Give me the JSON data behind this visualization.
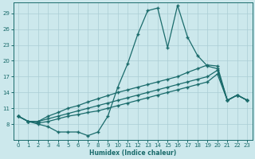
{
  "xlabel": "Humidex (Indice chaleur)",
  "bg_color": "#cce8ec",
  "grid_color": "#aacdd4",
  "line_color": "#1a6b6b",
  "ylim": [
    5,
    31
  ],
  "xlim": [
    -0.5,
    23.5
  ],
  "yticks": [
    8,
    11,
    14,
    17,
    20,
    23,
    26,
    29
  ],
  "xticks": [
    0,
    1,
    2,
    3,
    4,
    5,
    6,
    7,
    8,
    9,
    10,
    11,
    12,
    13,
    14,
    15,
    16,
    17,
    18,
    19,
    20,
    21,
    22,
    23
  ],
  "curve_main": {
    "x": [
      0,
      1,
      2,
      3,
      4,
      5,
      6,
      7,
      8,
      9,
      10,
      11,
      12,
      13,
      14,
      15,
      16,
      17,
      18,
      19,
      20,
      21,
      22,
      23
    ],
    "y": [
      9.5,
      8.5,
      8.0,
      7.5,
      6.5,
      6.5,
      6.5,
      5.8,
      6.5,
      9.5,
      15.0,
      19.5,
      25.0,
      29.5,
      30.0,
      22.5,
      30.5,
      24.5,
      21.0,
      19.0,
      18.5,
      12.5,
      13.5,
      12.5
    ]
  },
  "curve_line1": {
    "x": [
      0,
      1,
      2,
      3,
      4,
      5,
      6,
      7,
      8,
      9,
      10,
      11,
      12,
      13,
      14,
      15,
      16,
      17,
      18,
      19,
      20,
      21,
      22,
      23
    ],
    "y": [
      9.5,
      8.5,
      8.2,
      8.5,
      9.0,
      9.5,
      9.8,
      10.2,
      10.5,
      11.0,
      11.5,
      12.0,
      12.5,
      13.0,
      13.5,
      14.0,
      14.5,
      15.0,
      15.5,
      16.0,
      17.5,
      12.5,
      13.5,
      12.5
    ]
  },
  "curve_line2": {
    "x": [
      0,
      1,
      2,
      3,
      4,
      5,
      6,
      7,
      8,
      9,
      10,
      11,
      12,
      13,
      14,
      15,
      16,
      17,
      18,
      19,
      20,
      21,
      22,
      23
    ],
    "y": [
      9.5,
      8.5,
      8.5,
      9.0,
      9.5,
      10.0,
      10.5,
      11.0,
      11.5,
      12.0,
      12.5,
      13.0,
      13.5,
      14.0,
      14.5,
      15.0,
      15.5,
      16.0,
      16.5,
      17.0,
      18.2,
      12.5,
      13.5,
      12.5
    ]
  },
  "curve_line3": {
    "x": [
      0,
      1,
      2,
      3,
      4,
      5,
      6,
      7,
      8,
      9,
      10,
      11,
      12,
      13,
      14,
      15,
      16,
      17,
      18,
      19,
      20,
      21,
      22,
      23
    ],
    "y": [
      9.5,
      8.5,
      8.5,
      9.5,
      10.2,
      11.0,
      11.5,
      12.2,
      12.8,
      13.4,
      14.0,
      14.5,
      15.0,
      15.5,
      16.0,
      16.5,
      17.0,
      17.8,
      18.5,
      19.2,
      19.0,
      12.5,
      13.5,
      12.5
    ]
  },
  "curve_low": {
    "x": [
      0,
      1,
      2,
      3,
      4,
      5,
      6,
      7,
      8,
      9
    ],
    "y": [
      9.5,
      8.5,
      8.0,
      7.5,
      6.8,
      6.5,
      6.5,
      5.8,
      6.5,
      9.0
    ]
  }
}
